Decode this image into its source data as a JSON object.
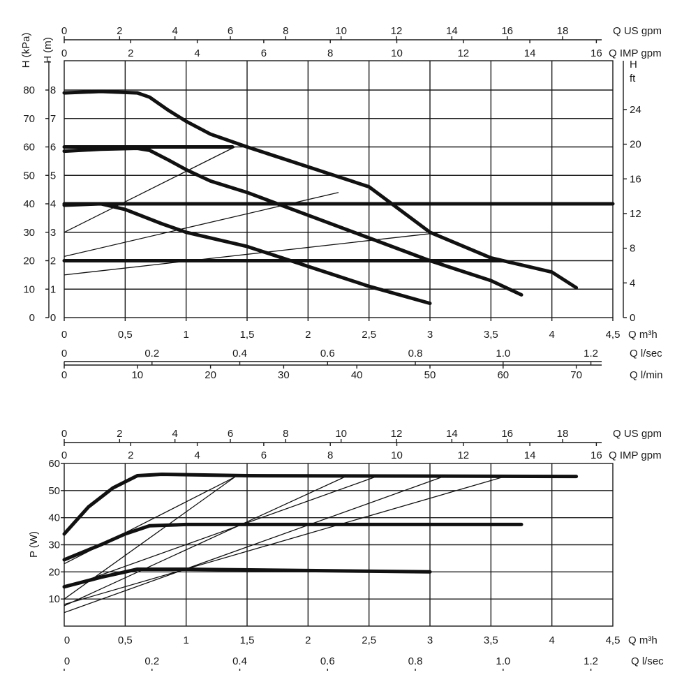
{
  "chart_data": [
    {
      "type": "line",
      "ylabel_left_kpa": "H (kPa)",
      "ylabel_left_m": "H (m)",
      "ylabel_right": "H",
      "ylabel_right_unit": "ft",
      "ylim_m": [
        0,
        9
      ],
      "xlim_m3h": [
        0,
        4.5
      ],
      "x_axes": [
        {
          "label": "Q m³h",
          "ticks": [
            "0",
            "0,5",
            "1",
            "1,5",
            "2",
            "2,5",
            "3",
            "3,5",
            "4",
            "4,5"
          ],
          "values": [
            0,
            0.5,
            1,
            1.5,
            2,
            2.5,
            3,
            3.5,
            4,
            4.5
          ]
        },
        {
          "label": "Q l/sec",
          "ticks": [
            "0",
            "0.2",
            "0.4",
            "0.6",
            "0.8",
            "1.0",
            "1.2"
          ],
          "values": [
            0,
            0.2,
            0.4,
            0.6,
            0.8,
            1.0,
            1.2
          ]
        },
        {
          "label": "Q l/min",
          "ticks": [
            "0",
            "10",
            "20",
            "30",
            "40",
            "50",
            "60",
            "70"
          ],
          "values": [
            0,
            10,
            20,
            30,
            40,
            50,
            60,
            70
          ]
        },
        {
          "label": "Q US gpm",
          "ticks": [
            "0",
            "2",
            "4",
            "6",
            "8",
            "10",
            "12",
            "14",
            "16",
            "18"
          ],
          "values": [
            0,
            2,
            4,
            6,
            8,
            10,
            12,
            14,
            16,
            18
          ]
        },
        {
          "label": "Q IMP gpm",
          "ticks": [
            "0",
            "2",
            "4",
            "6",
            "8",
            "10",
            "12",
            "14",
            "16"
          ],
          "values": [
            0,
            2,
            4,
            6,
            8,
            10,
            12,
            14,
            16
          ]
        }
      ],
      "y_axes": [
        {
          "name": "kPa",
          "ticks": [
            "0",
            "10",
            "20",
            "30",
            "40",
            "50",
            "60",
            "70",
            "80"
          ],
          "values": [
            0,
            10,
            20,
            30,
            40,
            50,
            60,
            70,
            80
          ]
        },
        {
          "name": "m",
          "ticks": [
            "0",
            "1",
            "2",
            "3",
            "4",
            "5",
            "6",
            "7",
            "8"
          ],
          "values": [
            0,
            1,
            2,
            3,
            4,
            5,
            6,
            7,
            8
          ]
        },
        {
          "name": "ft",
          "ticks": [
            "0",
            "4",
            "8",
            "12",
            "16",
            "20",
            "24"
          ],
          "values": [
            0,
            4,
            8,
            12,
            16,
            20,
            24
          ]
        }
      ],
      "grid": true,
      "series": [
        {
          "points": [
            [
              0,
              7.9
            ],
            [
              0.3,
              7.95
            ],
            [
              0.6,
              7.9
            ],
            [
              0.7,
              7.75
            ],
            [
              0.85,
              7.3
            ],
            [
              1.0,
              6.9
            ],
            [
              1.2,
              6.45
            ],
            [
              1.5,
              6.0
            ],
            [
              2.0,
              5.3
            ],
            [
              2.5,
              4.6
            ],
            [
              3.0,
              3.0
            ],
            [
              3.5,
              2.1
            ],
            [
              4.0,
              1.6
            ],
            [
              4.2,
              1.05
            ]
          ],
          "style": "thick"
        },
        {
          "points": [
            [
              0,
              5.85
            ],
            [
              0.3,
              5.92
            ],
            [
              0.6,
              5.95
            ],
            [
              0.7,
              5.88
            ],
            [
              0.85,
              5.55
            ],
            [
              1.0,
              5.2
            ],
            [
              1.2,
              4.8
            ],
            [
              1.5,
              4.4
            ],
            [
              2.0,
              3.6
            ],
            [
              2.5,
              2.8
            ],
            [
              3.0,
              2.0
            ],
            [
              3.5,
              1.3
            ],
            [
              3.75,
              0.8
            ]
          ],
          "style": "thick"
        },
        {
          "points": [
            [
              0,
              3.95
            ],
            [
              0.3,
              4.0
            ],
            [
              0.5,
              3.8
            ],
            [
              0.8,
              3.3
            ],
            [
              1.0,
              3.0
            ],
            [
              1.5,
              2.5
            ],
            [
              2.0,
              1.8
            ],
            [
              2.5,
              1.1
            ],
            [
              3.0,
              0.5
            ]
          ],
          "style": "thick"
        },
        {
          "points": [
            [
              0,
              6.0
            ],
            [
              1.38,
              6.0
            ]
          ],
          "style": "thick"
        },
        {
          "points": [
            [
              0,
              4.0
            ],
            [
              4.5,
              4.0
            ]
          ],
          "style": "thick"
        },
        {
          "points": [
            [
              0,
              2.0
            ],
            [
              3.6,
              2.0
            ]
          ],
          "style": "thick"
        },
        {
          "points": [
            [
              0,
              3.0
            ],
            [
              1.4,
              6.0
            ]
          ],
          "style": "thin"
        },
        {
          "points": [
            [
              0,
              2.15
            ],
            [
              2.25,
              4.4
            ]
          ],
          "style": "thin"
        },
        {
          "points": [
            [
              0,
              1.5
            ],
            [
              3.1,
              3.0
            ]
          ],
          "style": "thin"
        }
      ]
    },
    {
      "type": "line",
      "ylabel": "P (W)",
      "ylim": [
        0,
        60
      ],
      "xlim_m3h": [
        0,
        4.5
      ],
      "x_axes": [
        {
          "label": "Q m³h",
          "ticks": [
            "0",
            "0,5",
            "1",
            "1,5",
            "2",
            "2,5",
            "3",
            "3,5",
            "4",
            "4,5"
          ],
          "values": [
            0,
            0.5,
            1,
            1.5,
            2,
            2.5,
            3,
            3.5,
            4,
            4.5
          ]
        },
        {
          "label": "Q l/sec",
          "ticks": [
            "0",
            "0.2",
            "0.4",
            "0.6",
            "0.8",
            "1.0",
            "1.2"
          ],
          "values": [
            0,
            0.2,
            0.4,
            0.6,
            0.8,
            1.0,
            1.2
          ]
        },
        {
          "label": "Q US gpm",
          "ticks": [
            "0",
            "2",
            "4",
            "6",
            "8",
            "10",
            "12",
            "14",
            "16",
            "18"
          ],
          "values": [
            0,
            2,
            4,
            6,
            8,
            10,
            12,
            14,
            16,
            18
          ]
        },
        {
          "label": "Q IMP gpm",
          "ticks": [
            "0",
            "2",
            "4",
            "6",
            "8",
            "10",
            "12",
            "14",
            "16"
          ],
          "values": [
            0,
            2,
            4,
            6,
            8,
            10,
            12,
            14,
            16
          ]
        }
      ],
      "y_ticks": [
        "10",
        "20",
        "30",
        "40",
        "50",
        "60"
      ],
      "y_values": [
        10,
        20,
        30,
        40,
        50,
        60
      ],
      "grid": true,
      "series": [
        {
          "points": [
            [
              0,
              34
            ],
            [
              0.2,
              44
            ],
            [
              0.4,
              51
            ],
            [
              0.6,
              55.5
            ],
            [
              0.8,
              56
            ],
            [
              1.5,
              55.5
            ],
            [
              4.2,
              55.2
            ]
          ],
          "style": "thick"
        },
        {
          "points": [
            [
              0,
              24.5
            ],
            [
              0.3,
              30
            ],
            [
              0.5,
              34
            ],
            [
              0.7,
              37
            ],
            [
              1.0,
              37.5
            ],
            [
              3.75,
              37.5
            ]
          ],
          "style": "thick"
        },
        {
          "points": [
            [
              0,
              14.5
            ],
            [
              0.3,
              18
            ],
            [
              0.6,
              21
            ],
            [
              1.0,
              21
            ],
            [
              2.0,
              20.5
            ],
            [
              3.0,
              20
            ]
          ],
          "style": "thick"
        },
        {
          "points": [
            [
              0,
              10
            ],
            [
              1.4,
              55
            ]
          ],
          "style": "thin"
        },
        {
          "points": [
            [
              0,
              7.5
            ],
            [
              2.3,
              55
            ]
          ],
          "style": "thin"
        },
        {
          "points": [
            [
              0,
              5
            ],
            [
              3.1,
              55
            ]
          ],
          "style": "thin"
        },
        {
          "points": [
            [
              0,
              23
            ],
            [
              1.4,
              55
            ]
          ],
          "style": "thin"
        },
        {
          "points": [
            [
              0,
              14
            ],
            [
              2.55,
              55
            ]
          ],
          "style": "thin"
        },
        {
          "points": [
            [
              0,
              8
            ],
            [
              3.6,
              55
            ]
          ],
          "style": "thin"
        }
      ]
    }
  ]
}
